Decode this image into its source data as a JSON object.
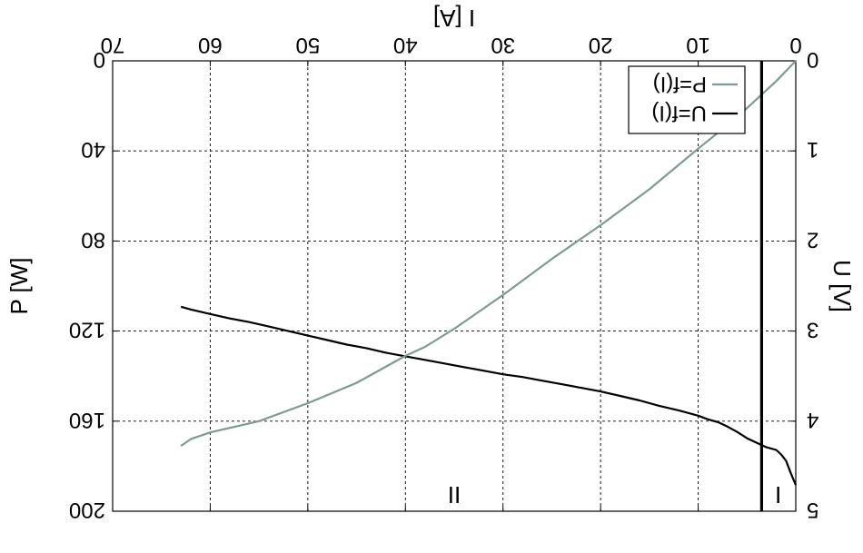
{
  "chart_data": {
    "type": "line",
    "orientation": "rotated-180",
    "x_axis": {
      "label": "I [A]",
      "range": [
        0,
        70
      ],
      "ticks": [
        0,
        10,
        20,
        30,
        40,
        50,
        60,
        70
      ],
      "grid": true
    },
    "y_left": {
      "label": "U [V]",
      "range": [
        0,
        5
      ],
      "ticks": [
        0,
        1,
        2,
        3,
        4,
        5
      ],
      "grid": true
    },
    "y_right": {
      "label": "P [W]",
      "range": [
        0,
        200
      ],
      "ticks": [
        0,
        40,
        80,
        120,
        160,
        200
      ]
    },
    "series": [
      {
        "name": "U=f(I)",
        "axis": "left",
        "color": "#000000",
        "x": [
          0,
          0.5,
          1,
          1.5,
          2,
          3,
          4,
          5,
          6,
          7,
          8,
          9,
          10,
          12,
          14,
          16,
          18,
          20,
          22,
          24,
          26,
          28,
          30,
          32,
          34,
          36,
          38,
          40,
          42,
          44,
          46,
          48,
          50,
          52,
          54,
          56,
          58,
          60,
          62,
          63
        ],
        "y": [
          4.71,
          4.58,
          4.44,
          4.37,
          4.32,
          4.29,
          4.24,
          4.19,
          4.12,
          4.06,
          4.01,
          3.98,
          3.94,
          3.88,
          3.83,
          3.77,
          3.72,
          3.67,
          3.63,
          3.59,
          3.55,
          3.51,
          3.48,
          3.44,
          3.4,
          3.36,
          3.32,
          3.28,
          3.24,
          3.19,
          3.15,
          3.1,
          3.05,
          3.0,
          2.95,
          2.9,
          2.86,
          2.81,
          2.76,
          2.73
        ]
      },
      {
        "name": "P=f(I)",
        "axis": "right",
        "color": "#7f9a96",
        "x": [
          0,
          2,
          4,
          6,
          8,
          10,
          15,
          20,
          25,
          30,
          35,
          38,
          40,
          45,
          50,
          55,
          58,
          60,
          62,
          63
        ],
        "y": [
          0,
          9,
          17,
          25,
          32,
          39,
          57,
          73,
          88,
          104,
          119,
          127,
          131,
          143,
          152,
          160,
          163,
          165,
          168,
          171
        ]
      }
    ],
    "vline": {
      "x": 3.5,
      "color": "#000000"
    },
    "region_labels": [
      {
        "text": "I",
        "x": 1.8,
        "y": 4.82
      },
      {
        "text": "II",
        "x": 35,
        "y": 4.82
      }
    ],
    "legend": {
      "position": "bottom-left",
      "entries": [
        "U=f(I)",
        "P=f(I)"
      ]
    }
  }
}
